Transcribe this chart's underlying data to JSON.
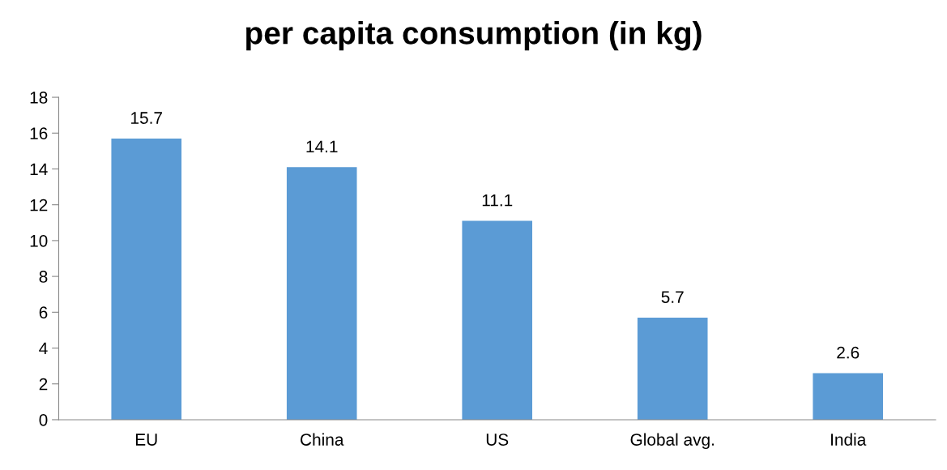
{
  "chart_data": {
    "type": "bar",
    "title": "per capita consumption (in kg)",
    "categories": [
      "EU",
      "China",
      "US",
      "Global avg.",
      "India"
    ],
    "values": [
      15.7,
      14.1,
      11.1,
      5.7,
      2.6
    ],
    "color": "#5b9bd5",
    "ylim": [
      0,
      18
    ],
    "yticks": [
      0,
      2,
      4,
      6,
      8,
      10,
      12,
      14,
      16,
      18
    ],
    "data_labels": true,
    "grid": false,
    "legend": false
  }
}
